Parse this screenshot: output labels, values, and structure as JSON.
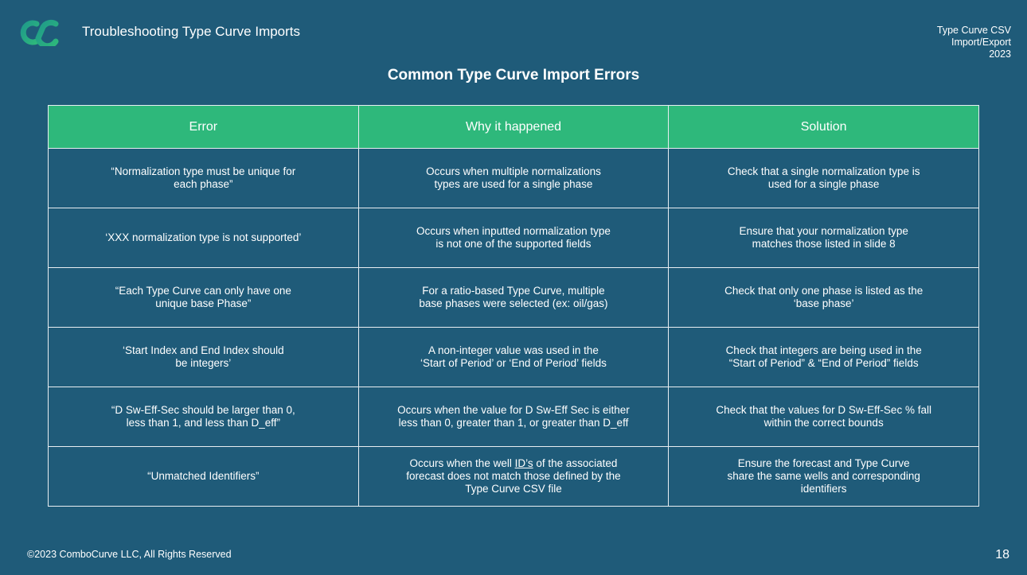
{
  "header": {
    "title": "Troubleshooting Type Curve Imports",
    "meta_lines": [
      "Type Curve CSV",
      "Import/Export",
      "2023"
    ],
    "logo_icon": "combocurve-logo-icon",
    "logo_colors": [
      "#1f9a8a",
      "#2eb87b"
    ]
  },
  "slide": {
    "title": "Common Type Curve Import Errors"
  },
  "table": {
    "header_color": "#2eb87b",
    "columns": [
      "Error",
      "Why it happened",
      "Solution"
    ],
    "rows": [
      {
        "error": [
          "“Normalization type must be unique for",
          "each phase”"
        ],
        "why": [
          "Occurs when multiple normalizations",
          "types are used for a single phase"
        ],
        "solution": [
          "Check that a single normalization type is",
          "used for a single phase"
        ]
      },
      {
        "error": [
          "‘XXX normalization type is not supported’"
        ],
        "why": [
          "Occurs when inputted normalization type",
          "is not one of the supported fields"
        ],
        "solution": [
          "Ensure that your normalization type",
          "matches those listed in slide 8"
        ]
      },
      {
        "error": [
          "“Each Type Curve can only have one",
          "unique base Phase”"
        ],
        "why": [
          "For a ratio-based Type Curve, multiple",
          "base phases were selected (ex: oil/gas)"
        ],
        "solution": [
          "Check that only one phase is listed as the",
          "‘base phase’"
        ]
      },
      {
        "error": [
          "‘Start Index and End Index should",
          "be integers’"
        ],
        "why": [
          "A non-integer value was used in the",
          "‘Start of Period’  or ‘End of Period’ fields"
        ],
        "solution": [
          "Check that integers are being used in the",
          "“Start of Period” & “End of Period” fields"
        ]
      },
      {
        "error": [
          "“D Sw-Eff-Sec should be larger than 0,",
          "less than 1, and less than D_eff”"
        ],
        "why": [
          "Occurs when the value for D Sw-Eff Sec is either",
          "less than 0, greater than 1, or greater than D_eff"
        ],
        "solution": [
          "Check that the values for D Sw-Eff-Sec % fall",
          "within the correct bounds"
        ]
      },
      {
        "error": [
          "“Unmatched Identifiers”"
        ],
        "why_parts": {
          "before": "Occurs when the well ",
          "underlined": "ID’s",
          "after": " of the associated",
          "line2": "forecast does not match those defined by the",
          "line3": "Type Curve CSV file"
        },
        "solution": [
          "Ensure the forecast and Type Curve",
          "share the same wells and corresponding",
          "identifiers"
        ]
      }
    ]
  },
  "footer": {
    "copyright": "©2023 ComboCurve LLC, All Rights Reserved",
    "page_number": "18"
  }
}
